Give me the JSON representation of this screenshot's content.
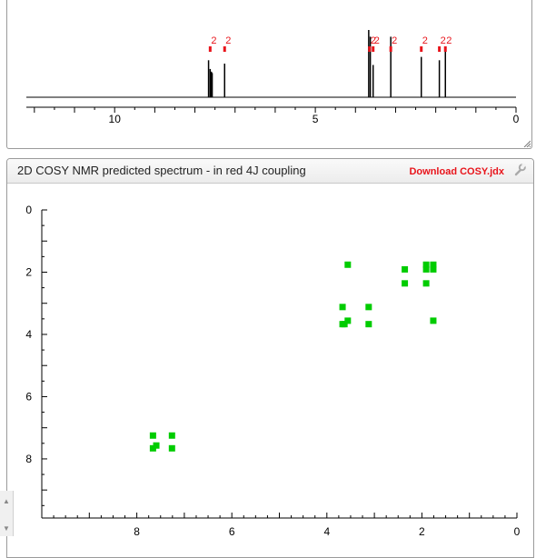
{
  "panel_2d": {
    "title": "2D COSY NMR predicted spectrum - in red 4J coupling",
    "download_label": "Download COSY.jdx",
    "wrench_icon": "wrench-icon"
  },
  "chart_data": [
    {
      "type": "line",
      "title": "",
      "xlabel": "",
      "ylabel": "",
      "x_reversed": true,
      "xlim": [
        12.2,
        0
      ],
      "x_ticks": [
        10,
        5,
        0
      ],
      "peaks": [
        {
          "x": 7.66,
          "height": 0.55
        },
        {
          "x": 7.62,
          "height": 0.42
        },
        {
          "x": 7.59,
          "height": 0.38
        },
        {
          "x": 7.57,
          "height": 0.36
        },
        {
          "x": 7.26,
          "height": 0.5
        },
        {
          "x": 3.67,
          "height": 1.0
        },
        {
          "x": 3.63,
          "height": 0.9
        },
        {
          "x": 3.56,
          "height": 0.48
        },
        {
          "x": 3.12,
          "height": 0.9
        },
        {
          "x": 2.36,
          "height": 0.6
        },
        {
          "x": 1.91,
          "height": 0.55
        },
        {
          "x": 1.76,
          "height": 0.72
        }
      ],
      "integration_labels": [
        {
          "x": 7.62,
          "label": "2"
        },
        {
          "x": 7.26,
          "label": "2"
        },
        {
          "x": 3.65,
          "label": "2"
        },
        {
          "x": 3.56,
          "label": "2"
        },
        {
          "x": 3.12,
          "label": "2"
        },
        {
          "x": 2.36,
          "label": "2"
        },
        {
          "x": 1.91,
          "label": "2"
        },
        {
          "x": 1.76,
          "label": "2"
        }
      ],
      "integration_color": "#e8141b",
      "line_color": "#000000"
    },
    {
      "type": "scatter",
      "title": "",
      "xlabel": "",
      "ylabel": "",
      "x_reversed": true,
      "xlim": [
        10,
        0
      ],
      "ylim": [
        0,
        9.9
      ],
      "x_ticks": [
        8,
        6,
        4,
        2,
        0
      ],
      "y_ticks": [
        0,
        2,
        4,
        6,
        8
      ],
      "point_color": "#00cc00",
      "points": [
        {
          "x": 7.66,
          "y": 7.25
        },
        {
          "x": 7.26,
          "y": 7.25
        },
        {
          "x": 7.66,
          "y": 7.66
        },
        {
          "x": 7.59,
          "y": 7.57
        },
        {
          "x": 7.26,
          "y": 7.66
        },
        {
          "x": 3.56,
          "y": 1.76
        },
        {
          "x": 2.36,
          "y": 1.91
        },
        {
          "x": 1.91,
          "y": 1.76
        },
        {
          "x": 1.76,
          "y": 1.76
        },
        {
          "x": 1.91,
          "y": 1.91
        },
        {
          "x": 1.76,
          "y": 1.91
        },
        {
          "x": 2.36,
          "y": 2.36
        },
        {
          "x": 1.91,
          "y": 2.36
        },
        {
          "x": 3.67,
          "y": 3.12
        },
        {
          "x": 3.12,
          "y": 3.12
        },
        {
          "x": 3.56,
          "y": 3.56
        },
        {
          "x": 3.67,
          "y": 3.67
        },
        {
          "x": 3.63,
          "y": 3.67
        },
        {
          "x": 3.12,
          "y": 3.67
        },
        {
          "x": 1.76,
          "y": 3.56
        }
      ]
    }
  ]
}
